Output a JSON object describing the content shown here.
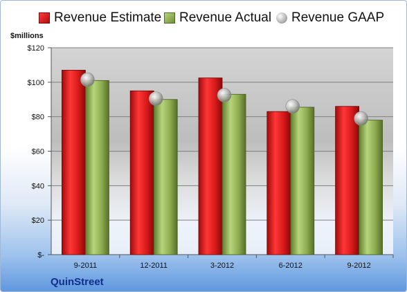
{
  "legend": {
    "estimate": "Revenue Estimate",
    "actual": "Revenue Actual",
    "gaap": "Revenue GAAP"
  },
  "unit_label": "$millions",
  "company": "QuinStreet",
  "colors": {
    "estimate": "#d81e1e",
    "actual": "#8fb04f",
    "gaap": "#a9a9a9"
  },
  "chart_data": {
    "type": "bar",
    "categories": [
      "9-2011",
      "12-2011",
      "3-2012",
      "6-2012",
      "9-2012"
    ],
    "series": [
      {
        "name": "Revenue Estimate",
        "values": [
          107,
          95,
          102.5,
          83,
          86
        ]
      },
      {
        "name": "Revenue Actual",
        "values": [
          101,
          90,
          93,
          85.5,
          78
        ]
      },
      {
        "name": "Revenue GAAP",
        "values": [
          101.5,
          90.5,
          92.5,
          86,
          79
        ]
      }
    ],
    "ylabel": "$millions",
    "ylim": [
      0,
      120
    ],
    "yticks": [
      0,
      20,
      40,
      60,
      80,
      100,
      120
    ],
    "ytick_labels": [
      "$-",
      "$20",
      "$40",
      "$60",
      "$80",
      "$100",
      "$120"
    ],
    "grid": true,
    "legend_position": "top"
  }
}
